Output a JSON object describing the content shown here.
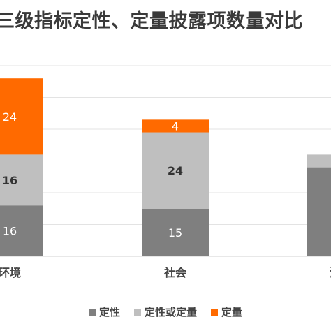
{
  "chart_data": {
    "type": "bar",
    "stacked": true,
    "title": "三级指标定性、定量披露项数量对比",
    "categories": [
      "环境",
      "社会",
      "治理"
    ],
    "series": [
      {
        "name": "定性",
        "color": "#7f7f7f",
        "values": [
          16,
          15,
          null
        ]
      },
      {
        "name": "定性或定量",
        "color": "#bfbfbf",
        "values": [
          16,
          24,
          null
        ]
      },
      {
        "name": "定量",
        "color": "#ff6a00",
        "values": [
          24,
          4,
          null
        ]
      }
    ],
    "grid": true,
    "legend": "bottom"
  }
}
